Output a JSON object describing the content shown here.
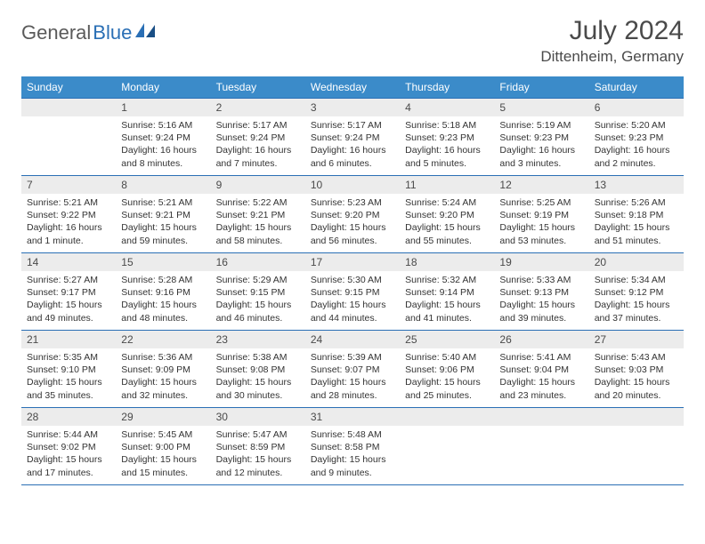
{
  "logo": {
    "text1": "General",
    "text2": "Blue"
  },
  "title": "July 2024",
  "location": "Dittenheim, Germany",
  "colors": {
    "header_bg": "#3b8bc9",
    "header_text": "#ffffff",
    "border": "#2a6fb5",
    "daynum_bg": "#ececec",
    "text": "#333333",
    "logo_gray": "#5a5a5a",
    "logo_blue": "#2a6fb5"
  },
  "day_names": [
    "Sunday",
    "Monday",
    "Tuesday",
    "Wednesday",
    "Thursday",
    "Friday",
    "Saturday"
  ],
  "weeks": [
    [
      {
        "n": "",
        "lines": []
      },
      {
        "n": "1",
        "lines": [
          "Sunrise: 5:16 AM",
          "Sunset: 9:24 PM",
          "Daylight: 16 hours",
          "and 8 minutes."
        ]
      },
      {
        "n": "2",
        "lines": [
          "Sunrise: 5:17 AM",
          "Sunset: 9:24 PM",
          "Daylight: 16 hours",
          "and 7 minutes."
        ]
      },
      {
        "n": "3",
        "lines": [
          "Sunrise: 5:17 AM",
          "Sunset: 9:24 PM",
          "Daylight: 16 hours",
          "and 6 minutes."
        ]
      },
      {
        "n": "4",
        "lines": [
          "Sunrise: 5:18 AM",
          "Sunset: 9:23 PM",
          "Daylight: 16 hours",
          "and 5 minutes."
        ]
      },
      {
        "n": "5",
        "lines": [
          "Sunrise: 5:19 AM",
          "Sunset: 9:23 PM",
          "Daylight: 16 hours",
          "and 3 minutes."
        ]
      },
      {
        "n": "6",
        "lines": [
          "Sunrise: 5:20 AM",
          "Sunset: 9:23 PM",
          "Daylight: 16 hours",
          "and 2 minutes."
        ]
      }
    ],
    [
      {
        "n": "7",
        "lines": [
          "Sunrise: 5:21 AM",
          "Sunset: 9:22 PM",
          "Daylight: 16 hours",
          "and 1 minute."
        ]
      },
      {
        "n": "8",
        "lines": [
          "Sunrise: 5:21 AM",
          "Sunset: 9:21 PM",
          "Daylight: 15 hours",
          "and 59 minutes."
        ]
      },
      {
        "n": "9",
        "lines": [
          "Sunrise: 5:22 AM",
          "Sunset: 9:21 PM",
          "Daylight: 15 hours",
          "and 58 minutes."
        ]
      },
      {
        "n": "10",
        "lines": [
          "Sunrise: 5:23 AM",
          "Sunset: 9:20 PM",
          "Daylight: 15 hours",
          "and 56 minutes."
        ]
      },
      {
        "n": "11",
        "lines": [
          "Sunrise: 5:24 AM",
          "Sunset: 9:20 PM",
          "Daylight: 15 hours",
          "and 55 minutes."
        ]
      },
      {
        "n": "12",
        "lines": [
          "Sunrise: 5:25 AM",
          "Sunset: 9:19 PM",
          "Daylight: 15 hours",
          "and 53 minutes."
        ]
      },
      {
        "n": "13",
        "lines": [
          "Sunrise: 5:26 AM",
          "Sunset: 9:18 PM",
          "Daylight: 15 hours",
          "and 51 minutes."
        ]
      }
    ],
    [
      {
        "n": "14",
        "lines": [
          "Sunrise: 5:27 AM",
          "Sunset: 9:17 PM",
          "Daylight: 15 hours",
          "and 49 minutes."
        ]
      },
      {
        "n": "15",
        "lines": [
          "Sunrise: 5:28 AM",
          "Sunset: 9:16 PM",
          "Daylight: 15 hours",
          "and 48 minutes."
        ]
      },
      {
        "n": "16",
        "lines": [
          "Sunrise: 5:29 AM",
          "Sunset: 9:15 PM",
          "Daylight: 15 hours",
          "and 46 minutes."
        ]
      },
      {
        "n": "17",
        "lines": [
          "Sunrise: 5:30 AM",
          "Sunset: 9:15 PM",
          "Daylight: 15 hours",
          "and 44 minutes."
        ]
      },
      {
        "n": "18",
        "lines": [
          "Sunrise: 5:32 AM",
          "Sunset: 9:14 PM",
          "Daylight: 15 hours",
          "and 41 minutes."
        ]
      },
      {
        "n": "19",
        "lines": [
          "Sunrise: 5:33 AM",
          "Sunset: 9:13 PM",
          "Daylight: 15 hours",
          "and 39 minutes."
        ]
      },
      {
        "n": "20",
        "lines": [
          "Sunrise: 5:34 AM",
          "Sunset: 9:12 PM",
          "Daylight: 15 hours",
          "and 37 minutes."
        ]
      }
    ],
    [
      {
        "n": "21",
        "lines": [
          "Sunrise: 5:35 AM",
          "Sunset: 9:10 PM",
          "Daylight: 15 hours",
          "and 35 minutes."
        ]
      },
      {
        "n": "22",
        "lines": [
          "Sunrise: 5:36 AM",
          "Sunset: 9:09 PM",
          "Daylight: 15 hours",
          "and 32 minutes."
        ]
      },
      {
        "n": "23",
        "lines": [
          "Sunrise: 5:38 AM",
          "Sunset: 9:08 PM",
          "Daylight: 15 hours",
          "and 30 minutes."
        ]
      },
      {
        "n": "24",
        "lines": [
          "Sunrise: 5:39 AM",
          "Sunset: 9:07 PM",
          "Daylight: 15 hours",
          "and 28 minutes."
        ]
      },
      {
        "n": "25",
        "lines": [
          "Sunrise: 5:40 AM",
          "Sunset: 9:06 PM",
          "Daylight: 15 hours",
          "and 25 minutes."
        ]
      },
      {
        "n": "26",
        "lines": [
          "Sunrise: 5:41 AM",
          "Sunset: 9:04 PM",
          "Daylight: 15 hours",
          "and 23 minutes."
        ]
      },
      {
        "n": "27",
        "lines": [
          "Sunrise: 5:43 AM",
          "Sunset: 9:03 PM",
          "Daylight: 15 hours",
          "and 20 minutes."
        ]
      }
    ],
    [
      {
        "n": "28",
        "lines": [
          "Sunrise: 5:44 AM",
          "Sunset: 9:02 PM",
          "Daylight: 15 hours",
          "and 17 minutes."
        ]
      },
      {
        "n": "29",
        "lines": [
          "Sunrise: 5:45 AM",
          "Sunset: 9:00 PM",
          "Daylight: 15 hours",
          "and 15 minutes."
        ]
      },
      {
        "n": "30",
        "lines": [
          "Sunrise: 5:47 AM",
          "Sunset: 8:59 PM",
          "Daylight: 15 hours",
          "and 12 minutes."
        ]
      },
      {
        "n": "31",
        "lines": [
          "Sunrise: 5:48 AM",
          "Sunset: 8:58 PM",
          "Daylight: 15 hours",
          "and 9 minutes."
        ]
      },
      {
        "n": "",
        "lines": []
      },
      {
        "n": "",
        "lines": []
      },
      {
        "n": "",
        "lines": []
      }
    ]
  ]
}
